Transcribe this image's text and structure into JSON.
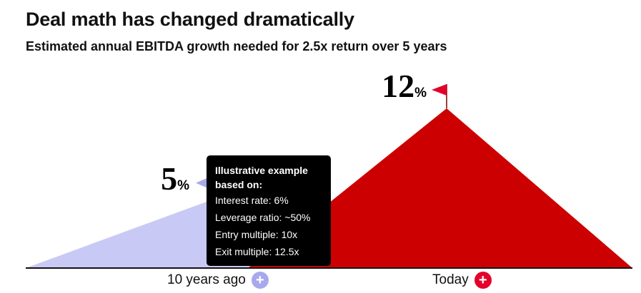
{
  "header": {
    "title": "Deal math has changed dramatically",
    "subtitle": "Estimated annual EBITDA growth needed for 2.5x return over 5 years"
  },
  "tooltip": {
    "heading": "Illustrative example based on:",
    "lines": [
      "Interest rate: 6%",
      "Leverage ratio: ~50%",
      "Entry multiple: 10x",
      "Exit multiple: 12.5x"
    ]
  },
  "chart_data": {
    "type": "area",
    "title": "Deal math has changed dramatically",
    "subtitle": "Estimated annual EBITDA growth needed for 2.5x return over 5 years",
    "categories": [
      "10 years ago",
      "Today"
    ],
    "values": [
      5,
      12
    ],
    "value_labels": [
      "5",
      "12"
    ],
    "unit": "%",
    "ylim": [
      0,
      14
    ],
    "series_colors": [
      "#c9c9f5",
      "#cc0000"
    ],
    "marker_colors": [
      "#a8a8ee",
      "#e3002b"
    ],
    "grid": false,
    "legend": "none"
  }
}
